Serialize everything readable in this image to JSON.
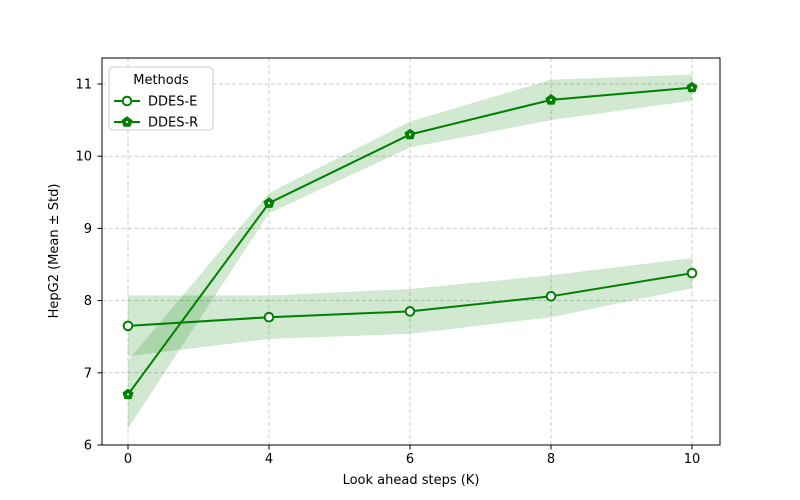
{
  "figure": {
    "background": "#ffffff",
    "spine_color": "#000000",
    "grid_color": "#cccccc"
  },
  "chart_data": {
    "type": "line",
    "title": "",
    "xlabel": "Look ahead steps (K)",
    "ylabel": "HepG2 (Mean ± Std)",
    "categories": [
      "0",
      "4",
      "6",
      "8",
      "10"
    ],
    "y_ticks": [
      "6",
      "7",
      "8",
      "9",
      "10",
      "11"
    ],
    "ylim": [
      6,
      11.36
    ],
    "grid": true,
    "grid_style": "dashed",
    "legend": {
      "title": "Methods",
      "position": "upper left"
    },
    "series": [
      {
        "name": "DDES-E",
        "marker": "circle-open",
        "color": "#008000",
        "band_alpha": 0.18,
        "means": [
          7.65,
          7.77,
          7.85,
          8.06,
          8.38
        ],
        "stds": [
          0.42,
          0.3,
          0.31,
          0.29,
          0.21
        ]
      },
      {
        "name": "DDES-R",
        "marker": "pentagon-filled",
        "color": "#008000",
        "band_alpha": 0.18,
        "means": [
          6.7,
          9.35,
          10.3,
          10.78,
          10.95
        ],
        "stds": [
          0.47,
          0.14,
          0.18,
          0.28,
          0.18
        ]
      }
    ]
  }
}
